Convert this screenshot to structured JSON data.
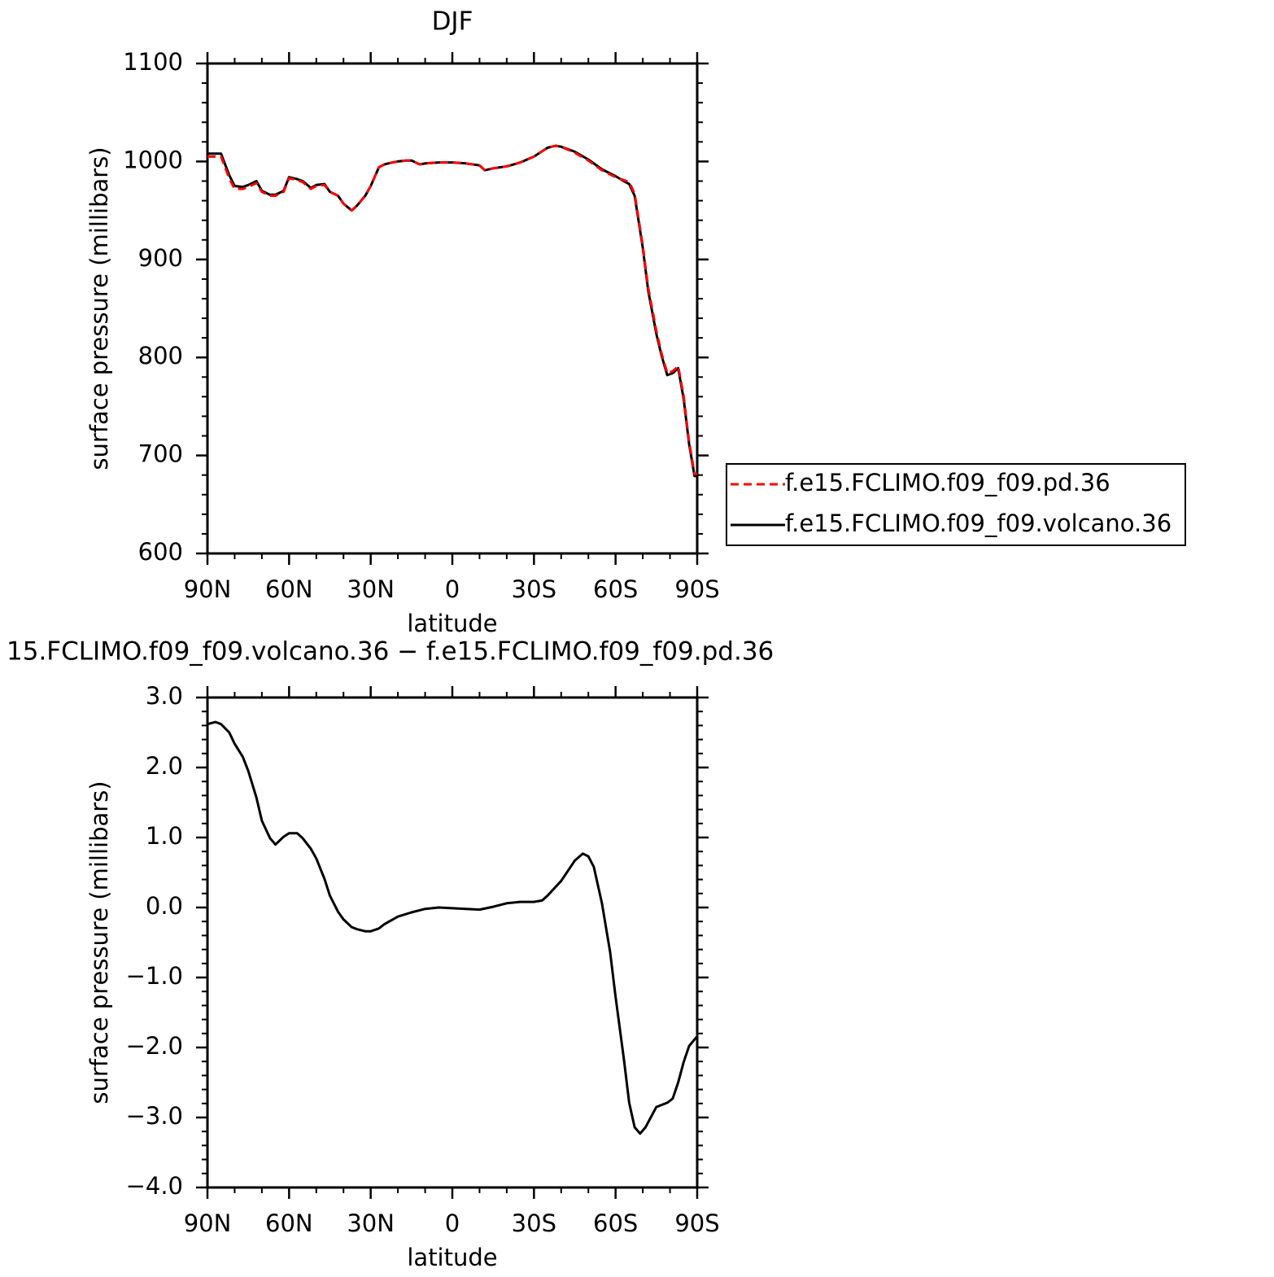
{
  "chart_data": [
    {
      "type": "line",
      "title": "DJF",
      "xlabel": "latitude",
      "ylabel": "surface pressure (millibars)",
      "legend": "right",
      "x": [
        90,
        87,
        85,
        82,
        80,
        77,
        75,
        72,
        70,
        67,
        65,
        62,
        60,
        57,
        55,
        52,
        50,
        47,
        45,
        42,
        40,
        37,
        35,
        32,
        30,
        27,
        25,
        22,
        20,
        17,
        15,
        12,
        10,
        5,
        0,
        -5,
        -10,
        -12,
        -15,
        -20,
        -25,
        -30,
        -35,
        -38,
        -40,
        -45,
        -50,
        -55,
        -60,
        -63,
        -65,
        -67,
        -70,
        -72,
        -75,
        -77,
        -79,
        -81,
        -83,
        -85,
        -87,
        -89,
        -90
      ],
      "series": [
        {
          "name": "f.e15.FCLIMO.f09_f09.pd.36",
          "color": "#ff0000",
          "linestyle": "dashed",
          "values": [
            1005,
            1005,
            1005,
            983,
            972,
            972,
            974,
            978,
            969,
            965,
            965,
            969,
            983,
            981,
            979,
            972,
            975,
            976,
            969,
            965,
            957,
            950,
            955,
            965,
            975,
            994,
            997,
            999,
            1000,
            1001,
            1001,
            997,
            998,
            999,
            999,
            998,
            996,
            991,
            993,
            995,
            999,
            1005,
            1014,
            1016,
            1015,
            1009,
            1001,
            991,
            984,
            981,
            979,
            967,
            914,
            871,
            827,
            803,
            784,
            786,
            791,
            761,
            714,
            681,
            681
          ]
        },
        {
          "name": "f.e15.FCLIMO.f09_f09.volcano.36",
          "color": "#000000",
          "linestyle": "solid",
          "values": [
            1008,
            1008,
            1008,
            986,
            975,
            974,
            976,
            980,
            970,
            966,
            966,
            970,
            984,
            982,
            980,
            973,
            976,
            977,
            969,
            965,
            957,
            950,
            955,
            965,
            975,
            994,
            997,
            999,
            1000,
            1001,
            1001,
            997,
            998,
            999,
            999,
            998,
            996,
            991,
            993,
            995,
            999,
            1005,
            1014,
            1016,
            1015,
            1010,
            1002,
            992,
            985,
            980,
            977,
            965,
            912,
            868,
            824,
            801,
            782,
            784,
            789,
            758,
            712,
            679,
            679
          ]
        }
      ],
      "xlim": [
        90,
        -90
      ],
      "ylim": [
        600,
        1100
      ],
      "xticks": [
        {
          "value": 90,
          "label": "90N"
        },
        {
          "value": 60,
          "label": "60N"
        },
        {
          "value": 30,
          "label": "30N"
        },
        0,
        {
          "value": -30,
          "label": "30S"
        },
        {
          "value": -60,
          "label": "60S"
        },
        {
          "value": -90,
          "label": "90S"
        }
      ],
      "yticks": [
        600,
        700,
        800,
        900,
        1000,
        1100
      ],
      "xminorticks": [
        80,
        70,
        50,
        40,
        20,
        10,
        -10,
        -20,
        -40,
        -50,
        -70,
        -80
      ],
      "yminorticks": [
        620,
        640,
        660,
        680,
        720,
        740,
        760,
        780,
        820,
        840,
        860,
        880,
        920,
        940,
        960,
        980,
        1020,
        1040,
        1060,
        1080
      ]
    },
    {
      "type": "line",
      "title": "15.FCLIMO.f09_f09.volcano.36 − f.e15.FCLIMO.f09_f09.pd.36",
      "xlabel": "latitude",
      "ylabel": "surface pressure (millibars)",
      "x": [
        90,
        87,
        85,
        82,
        80,
        77,
        75,
        72,
        70,
        67,
        65,
        62,
        60,
        57,
        55,
        52,
        50,
        47,
        45,
        42,
        40,
        37,
        35,
        32,
        30,
        27,
        25,
        20,
        15,
        10,
        5,
        0,
        -5,
        -10,
        -15,
        -20,
        -25,
        -30,
        -33,
        -35,
        -40,
        -45,
        -48,
        -50,
        -52,
        -55,
        -58,
        -60,
        -63,
        -65,
        -67,
        -69,
        -71,
        -75,
        -79,
        -81,
        -83,
        -85,
        -87,
        -90
      ],
      "series": [
        {
          "color": "#000000",
          "linestyle": "solid",
          "values": [
            2.62,
            2.65,
            2.62,
            2.5,
            2.34,
            2.15,
            1.95,
            1.57,
            1.24,
            0.99,
            0.9,
            1.01,
            1.06,
            1.06,
            0.99,
            0.84,
            0.7,
            0.41,
            0.17,
            -0.06,
            -0.17,
            -0.28,
            -0.31,
            -0.34,
            -0.34,
            -0.3,
            -0.24,
            -0.13,
            -0.07,
            -0.02,
            0.0,
            -0.01,
            -0.02,
            -0.03,
            0.01,
            0.06,
            0.08,
            0.08,
            0.1,
            0.17,
            0.38,
            0.67,
            0.77,
            0.73,
            0.58,
            0.06,
            -0.64,
            -1.28,
            -2.15,
            -2.79,
            -3.14,
            -3.23,
            -3.14,
            -2.85,
            -2.79,
            -2.73,
            -2.5,
            -2.21,
            -1.98,
            -1.84
          ]
        }
      ],
      "xlim": [
        90,
        -90
      ],
      "ylim": [
        -4,
        3
      ],
      "xticks": [
        {
          "value": 90,
          "label": "90N"
        },
        {
          "value": 60,
          "label": "60N"
        },
        {
          "value": 30,
          "label": "30N"
        },
        0,
        {
          "value": -30,
          "label": "30S"
        },
        {
          "value": -60,
          "label": "60S"
        },
        {
          "value": -90,
          "label": "90S"
        }
      ],
      "yticks": [
        {
          "value": -4,
          "label": "−4.0"
        },
        {
          "value": -3,
          "label": "−3.0"
        },
        {
          "value": -2,
          "label": "−2.0"
        },
        {
          "value": -1,
          "label": "−1.0"
        },
        {
          "value": 0,
          "label": "0.0"
        },
        {
          "value": 1,
          "label": "1.0"
        },
        {
          "value": 2,
          "label": "2.0"
        },
        {
          "value": 3,
          "label": "3.0"
        }
      ],
      "xminorticks": [
        80,
        70,
        50,
        40,
        20,
        10,
        -10,
        -20,
        -40,
        -50,
        -70,
        -80
      ],
      "yminorticks": [
        -3.8,
        -3.6,
        -3.4,
        -3.2,
        -2.8,
        -2.6,
        -2.4,
        -2.2,
        -1.8,
        -1.6,
        -1.4,
        -1.2,
        -0.8,
        -0.6,
        -0.4,
        -0.2,
        0.2,
        0.4,
        0.6,
        0.8,
        1.2,
        1.4,
        1.6,
        1.8,
        2.2,
        2.4,
        2.6,
        2.8
      ]
    }
  ]
}
